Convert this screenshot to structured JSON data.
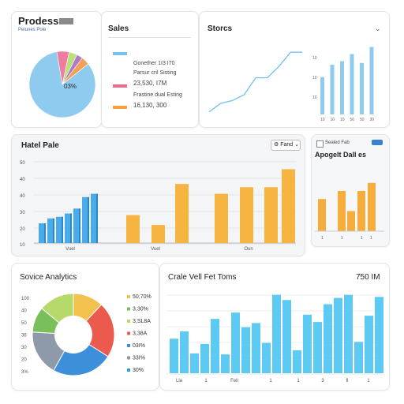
{
  "progress": {
    "title": "Prodess",
    "subtitle": "Pelunes Pole",
    "pie_label": "03%",
    "pie": [
      {
        "value": 83,
        "color": "#8ecbee"
      },
      {
        "value": 6,
        "color": "#f07aa0"
      },
      {
        "value": 4,
        "color": "#b9e07a"
      },
      {
        "value": 3,
        "color": "#b07ac6"
      },
      {
        "value": 4,
        "color": "#f2a055"
      }
    ]
  },
  "sales": {
    "title": "Sales",
    "legend": [
      {
        "name": "Gonether 1I3 I70",
        "value": "",
        "color": "#74c4ea"
      },
      {
        "name": "Parsur cril Sisting",
        "value": "23,530, I7M",
        "color": "#ee6a8a"
      },
      {
        "name": "Frastine dual Esting",
        "value": "16,130, 300",
        "color": "#f7a33a"
      }
    ]
  },
  "stocks": {
    "title": "Storcs",
    "chevron": "chevron-down-icon",
    "line_values": [
      2,
      5,
      6,
      8,
      14,
      14,
      18,
      23,
      23
    ],
    "bar_values": [
      21,
      28,
      30,
      34,
      29,
      38
    ],
    "y_ticks": [
      "10",
      "10",
      "10"
    ],
    "x_ticks": [
      "10",
      "10",
      "10",
      "50",
      "50",
      "30"
    ]
  },
  "main_bar": {
    "title": "Hatel Pale",
    "dropdown": "Fand",
    "chart_data": {
      "type": "bar",
      "y_ticks": [
        "50",
        "40",
        "40",
        "30",
        "20",
        "10"
      ],
      "x_labels": [
        "Vuel",
        "Vuel",
        "Oun"
      ],
      "blue_values": [
        12,
        15,
        16,
        18,
        21,
        28,
        30
      ],
      "orange_values": [
        17,
        11,
        36,
        30,
        34,
        34,
        45
      ]
    }
  },
  "side_bar": {
    "checkbox_label": "Sealed Fab",
    "title": "Apogelt Dall es",
    "chart_data": {
      "type": "bar",
      "values": [
        24,
        30,
        15,
        30,
        36
      ],
      "x_labels": [
        "1",
        "1",
        "1",
        "1"
      ]
    }
  },
  "analytics": {
    "title": "Sovice Analytics",
    "chart_data": {
      "type": "pie",
      "y_ticks": [
        "100",
        "40",
        "50",
        "36",
        "30",
        "20",
        "3%"
      ],
      "slices": [
        {
          "value": 12,
          "color": "#f2c14e"
        },
        {
          "value": 22,
          "color": "#ec5a4e"
        },
        {
          "value": 24,
          "color": "#3c8fd8"
        },
        {
          "value": 18,
          "color": "#8e9aaa"
        },
        {
          "value": 10,
          "color": "#7ac05a"
        },
        {
          "value": 14,
          "color": "#b5d96a"
        }
      ],
      "legend": [
        {
          "label": "50,70%",
          "color": "#f2c14e"
        },
        {
          "label": "3,30%",
          "color": "#7ac05a"
        },
        {
          "label": "3,SL8A",
          "color": "#b5d96a"
        },
        {
          "label": "3,38A",
          "color": "#ec5a4e"
        },
        {
          "label": "03I%",
          "color": "#3c8fd8"
        },
        {
          "label": "33I%",
          "color": "#8e9aaa"
        },
        {
          "label": "30%",
          "color": "#29a3e0"
        }
      ]
    }
  },
  "forecast": {
    "title": "Crale Vell Fet Toms",
    "value": "750 IM",
    "chart_data": {
      "type": "bar",
      "values": [
        33,
        40,
        19,
        28,
        52,
        18,
        58,
        44,
        48,
        29,
        75,
        70,
        22,
        56,
        49,
        66,
        72,
        75,
        30,
        55,
        73
      ],
      "x_labels": [
        "Lla",
        "1",
        "Fell",
        "1",
        "1",
        "3",
        "fl",
        "1"
      ]
    }
  }
}
